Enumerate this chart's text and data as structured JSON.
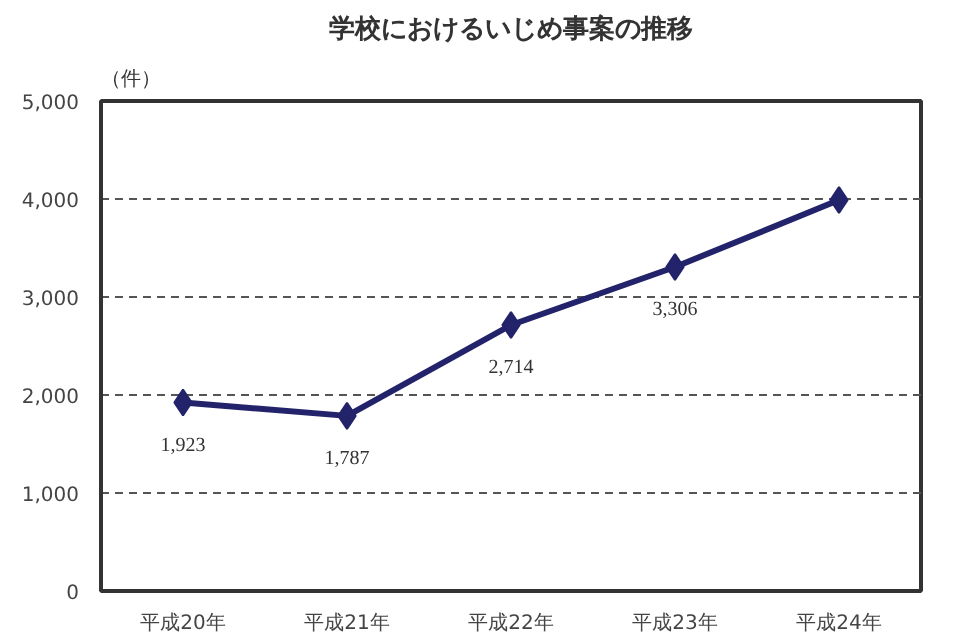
{
  "chart_data": {
    "type": "line",
    "title": "学校におけるいじめ事案の推移",
    "ylabel": "（件）",
    "categories": [
      "平成20年",
      "平成21年",
      "平成22年",
      "平成23年",
      "平成24年"
    ],
    "series": [
      {
        "color": "#23236b",
        "values": [
          1923,
          1787,
          2714,
          3306,
          3990
        ],
        "value_labels": [
          "1,923",
          "1,787",
          "2,714",
          "3,306",
          null
        ]
      }
    ],
    "ylim": [
      0,
      5000
    ],
    "yticks": [
      0,
      {
        "value": 1000,
        "label": "1,000"
      },
      {
        "value": 2000,
        "label": "2,000"
      },
      {
        "value": 3000,
        "label": "3,000"
      },
      {
        "value": 4000,
        "label": "4,000"
      },
      {
        "value": 5000,
        "label": "5,000"
      }
    ],
    "grid": "y",
    "marker": "diamond",
    "line_style": "solid"
  }
}
